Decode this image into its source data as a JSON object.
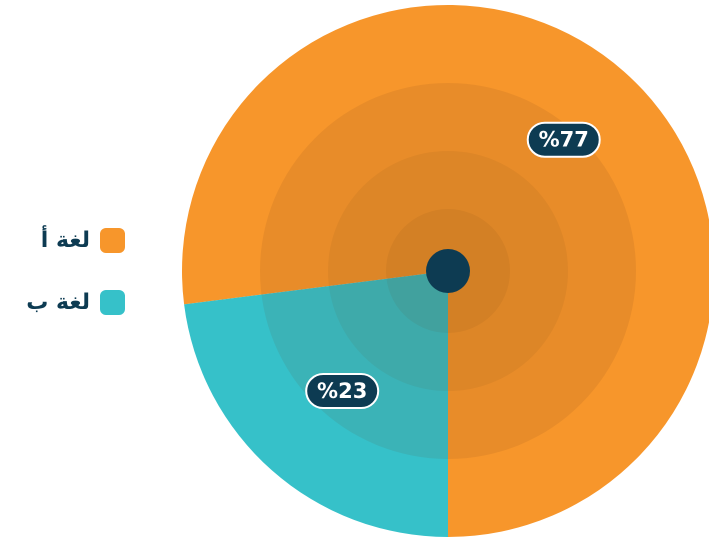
{
  "chart_data": {
    "type": "pie",
    "categories": [
      "لغة أ",
      "لغة ب"
    ],
    "values": [
      77,
      23
    ],
    "value_labels": [
      "%77",
      "%23"
    ],
    "colors": [
      "#f7962b",
      "#36c1c9"
    ]
  }
}
